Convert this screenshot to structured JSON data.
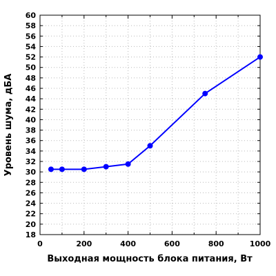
{
  "chart_data": {
    "type": "line",
    "xlabel": "Выходная мощность блока питания, Вт",
    "ylabel": "Уровень шума, дБА",
    "xlim": [
      0,
      1000
    ],
    "ylim": [
      18,
      60
    ],
    "x_ticks": [
      0,
      200,
      400,
      600,
      800,
      1000
    ],
    "y_ticks": [
      18,
      20,
      22,
      24,
      26,
      28,
      30,
      32,
      34,
      36,
      38,
      40,
      42,
      44,
      46,
      48,
      50,
      52,
      54,
      56,
      58,
      60
    ],
    "grid": true,
    "grid_style": "dotted",
    "series": [
      {
        "color": "#0000ff",
        "x": [
          50,
          100,
          200,
          300,
          400,
          500,
          750,
          1000
        ],
        "y": [
          30.5,
          30.5,
          30.5,
          31.0,
          31.5,
          35.0,
          45.0,
          52.0
        ]
      }
    ]
  }
}
